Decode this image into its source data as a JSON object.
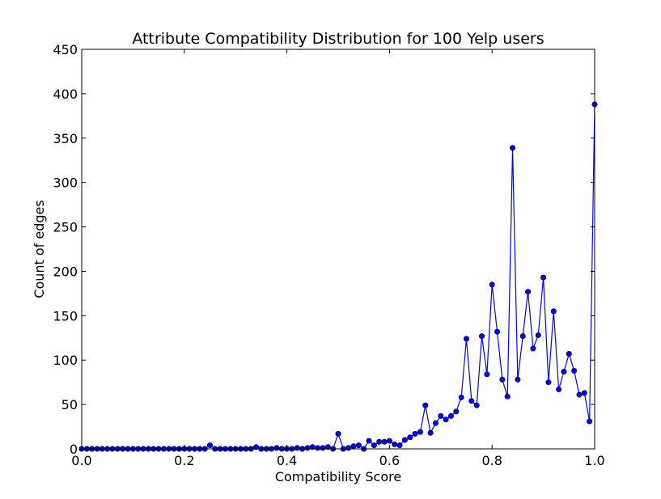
{
  "chart_data": {
    "type": "line",
    "title": "Attribute Compatibility Distribution for 100 Yelp users",
    "xlabel": "Compatibility Score",
    "ylabel": "Count of edges",
    "xlim": [
      0.0,
      1.0
    ],
    "ylim": [
      0,
      450
    ],
    "xticks": [
      "0.0",
      "0.2",
      "0.4",
      "0.6",
      "0.8",
      "1.0"
    ],
    "yticks": [
      "0",
      "50",
      "100",
      "150",
      "200",
      "250",
      "300",
      "350",
      "400",
      "450"
    ],
    "grid": false,
    "legend": false,
    "line_color": "#0000ff",
    "marker_color": "#0000ff",
    "marker": "circle",
    "series": [
      {
        "x": [
          0.0,
          0.01,
          0.02,
          0.03,
          0.04,
          0.05,
          0.06,
          0.07,
          0.08,
          0.09,
          0.1,
          0.11,
          0.12,
          0.13,
          0.14,
          0.15,
          0.16,
          0.17,
          0.18,
          0.19,
          0.2,
          0.21,
          0.22,
          0.23,
          0.24,
          0.25,
          0.26,
          0.27,
          0.28,
          0.29,
          0.3,
          0.31,
          0.32,
          0.33,
          0.34,
          0.35,
          0.36,
          0.37,
          0.38,
          0.39,
          0.4,
          0.41,
          0.42,
          0.43,
          0.44,
          0.45,
          0.46,
          0.47,
          0.48,
          0.49,
          0.5,
          0.51,
          0.52,
          0.53,
          0.54,
          0.55,
          0.56,
          0.57,
          0.58,
          0.59,
          0.6,
          0.61,
          0.62,
          0.63,
          0.64,
          0.65,
          0.66,
          0.67,
          0.68,
          0.69,
          0.7,
          0.71,
          0.72,
          0.73,
          0.74,
          0.75,
          0.76,
          0.77,
          0.78,
          0.79,
          0.8,
          0.81,
          0.82,
          0.83,
          0.84,
          0.85,
          0.86,
          0.87,
          0.88,
          0.89,
          0.9,
          0.91,
          0.92,
          0.93,
          0.94,
          0.95,
          0.96,
          0.97,
          0.98,
          0.99,
          1.0
        ],
        "y": [
          0,
          0,
          0,
          0,
          0,
          0,
          0,
          0,
          0,
          0,
          0,
          0,
          0,
          0,
          0,
          0,
          0,
          0,
          0,
          0,
          0,
          0,
          0,
          0,
          0,
          4,
          0,
          0,
          0,
          0,
          0,
          0,
          0,
          0,
          2,
          0,
          0,
          0,
          1,
          0,
          0,
          0,
          1,
          0,
          1,
          2,
          1,
          1,
          2,
          0,
          17,
          0,
          1,
          3,
          4,
          0,
          9,
          4,
          8,
          8,
          9,
          5,
          4,
          10,
          13,
          17,
          19,
          49,
          18,
          29,
          37,
          33,
          37,
          42,
          58,
          124,
          54,
          49,
          127,
          84,
          185,
          132,
          78,
          59,
          339,
          78,
          127,
          177,
          113,
          128,
          193,
          75,
          155,
          67,
          87,
          107,
          88,
          61,
          63,
          31,
          388
        ]
      }
    ]
  }
}
